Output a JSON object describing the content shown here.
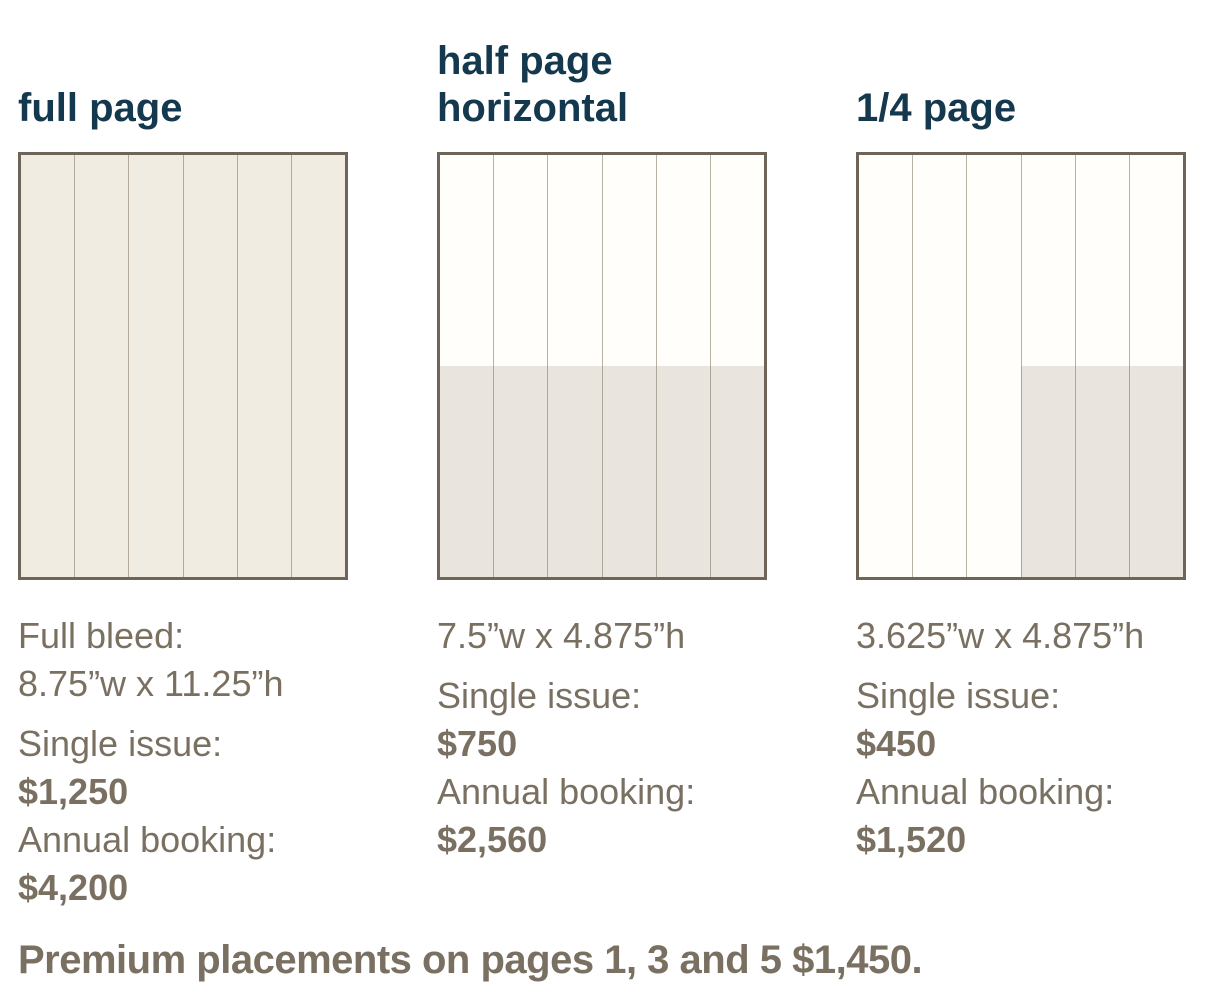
{
  "colors": {
    "title_navy": "#14384e",
    "text_brown": "#7a7062",
    "box_border": "#6e6457",
    "full_page_fill": "#f1ece2",
    "page_white": "#fffefb",
    "ad_area_shade": "#e9e4dd",
    "column_divider": "#aca294"
  },
  "options": [
    {
      "title_line1": "full page",
      "title_line2": "",
      "dim_line1": "Full bleed:",
      "dim_line2": "8.75”w x 11.25”h",
      "single_issue_label": "Single issue:",
      "single_issue_price": "$1,250",
      "annual_label": "Annual booking:",
      "annual_price": "$4,200"
    },
    {
      "title_line1": "half page",
      "title_line2": "horizontal",
      "dim_line1": "7.5”w x 4.875”h",
      "dim_line2": "",
      "single_issue_label": "Single issue:",
      "single_issue_price": "$750",
      "annual_label": "Annual booking:",
      "annual_price": "$2,560"
    },
    {
      "title_line1": "1/4 page",
      "title_line2": "",
      "dim_line1": "3.625”w x 4.875”h",
      "dim_line2": "",
      "single_issue_label": "Single issue:",
      "single_issue_price": "$450",
      "annual_label": "Annual booking:",
      "annual_price": "$1,520"
    }
  ],
  "premium_note": "Premium placements on pages 1, 3 and 5 $1,450."
}
